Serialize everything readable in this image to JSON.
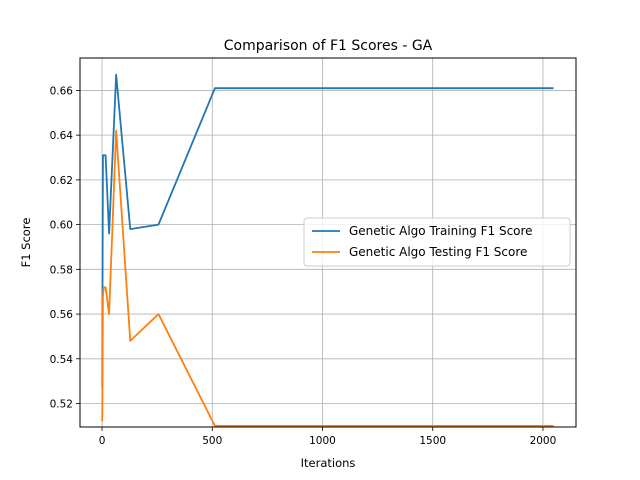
{
  "chart_data": {
    "type": "line",
    "title": "Comparison of F1 Scores - GA",
    "xlabel": "Iterations",
    "ylabel": "F1 Score",
    "xlim": [
      -100,
      2150
    ],
    "ylim": [
      0.5095,
      0.6745
    ],
    "xticks": [
      0,
      500,
      1000,
      1500,
      2000
    ],
    "yticks": [
      0.52,
      0.54,
      0.56,
      0.58,
      0.6,
      0.62,
      0.64,
      0.66
    ],
    "ytick_labels": [
      "0.52",
      "0.54",
      "0.56",
      "0.58",
      "0.60",
      "0.62",
      "0.64",
      "0.66"
    ],
    "grid": true,
    "legend_position": "center-right",
    "series": [
      {
        "name": "Genetic Algo Training F1 Score",
        "color": "#1f77b4",
        "x": [
          1,
          2,
          4,
          8,
          16,
          32,
          64,
          128,
          256,
          512,
          1024,
          2048
        ],
        "y": [
          0.527,
          0.567,
          0.631,
          0.631,
          0.631,
          0.596,
          0.667,
          0.598,
          0.6,
          0.661,
          0.661,
          0.661
        ]
      },
      {
        "name": "Genetic Algo Testing F1 Score",
        "color": "#ff7f0e",
        "x": [
          1,
          2,
          4,
          8,
          16,
          32,
          64,
          128,
          256,
          512,
          1024,
          2048
        ],
        "y": [
          0.512,
          0.528,
          0.568,
          0.572,
          0.572,
          0.56,
          0.642,
          0.548,
          0.56,
          0.51,
          0.51,
          0.51
        ]
      }
    ]
  }
}
